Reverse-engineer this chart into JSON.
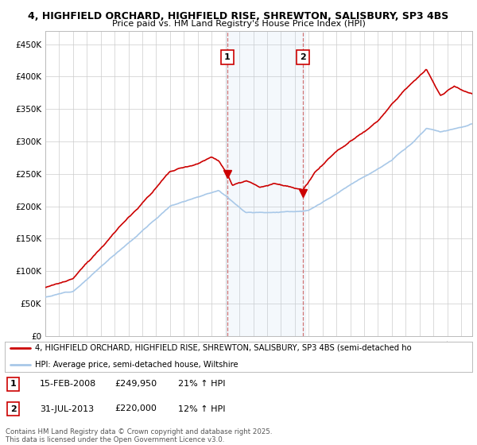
{
  "title1": "4, HIGHFIELD ORCHARD, HIGHFIELD RISE, SHREWTON, SALISBURY, SP3 4BS",
  "title2": "Price paid vs. HM Land Registry's House Price Index (HPI)",
  "ylim": [
    0,
    470000
  ],
  "yticks": [
    0,
    50000,
    100000,
    150000,
    200000,
    250000,
    300000,
    350000,
    400000,
    450000
  ],
  "ytick_labels": [
    "£0",
    "£50K",
    "£100K",
    "£150K",
    "£200K",
    "£250K",
    "£300K",
    "£350K",
    "£400K",
    "£450K"
  ],
  "xlim_start": 1995.0,
  "xlim_end": 2025.8,
  "sale1_x": 2008.12,
  "sale1_y": 249950,
  "sale2_x": 2013.58,
  "sale2_y": 220000,
  "shade_x1": 2008.0,
  "shade_x2": 2013.75,
  "legend_line1": "4, HIGHFIELD ORCHARD, HIGHFIELD RISE, SHREWTON, SALISBURY, SP3 4BS (semi-detached ho",
  "legend_line2": "HPI: Average price, semi-detached house, Wiltshire",
  "table_rows": [
    [
      "1",
      "15-FEB-2008",
      "£249,950",
      "21% ↑ HPI"
    ],
    [
      "2",
      "31-JUL-2013",
      "£220,000",
      "12% ↑ HPI"
    ]
  ],
  "footer": "Contains HM Land Registry data © Crown copyright and database right 2025.\nThis data is licensed under the Open Government Licence v3.0.",
  "hpi_color": "#a8c8e8",
  "sale_color": "#cc0000",
  "background_color": "#ffffff",
  "grid_color": "#cccccc"
}
